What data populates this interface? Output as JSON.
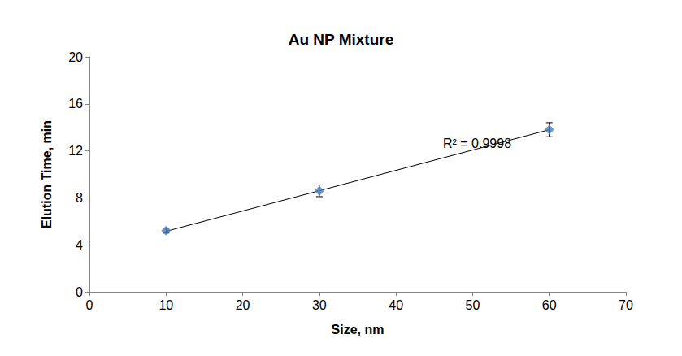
{
  "chart_data": {
    "type": "scatter",
    "title": "Au NP Mixture",
    "x_label": "Size, nm",
    "y_label": "Elution Time, min",
    "x": [
      10,
      30,
      60
    ],
    "values": [
      5.2,
      8.6,
      13.8
    ],
    "errors": [
      0.2,
      0.5,
      0.6
    ],
    "color": "#4a7ebb",
    "marker": "diamond",
    "trendline": {
      "x": [
        10,
        60
      ],
      "y": [
        5.15,
        13.8
      ]
    },
    "annotations": [
      "R² = 0.9998"
    ],
    "xlim": [
      0,
      70
    ],
    "xticks": [
      0,
      10,
      20,
      30,
      40,
      50,
      60,
      70
    ],
    "ylim": [
      0,
      20
    ],
    "yticks": [
      0,
      4,
      8,
      12,
      16,
      20
    ],
    "grid": false
  }
}
